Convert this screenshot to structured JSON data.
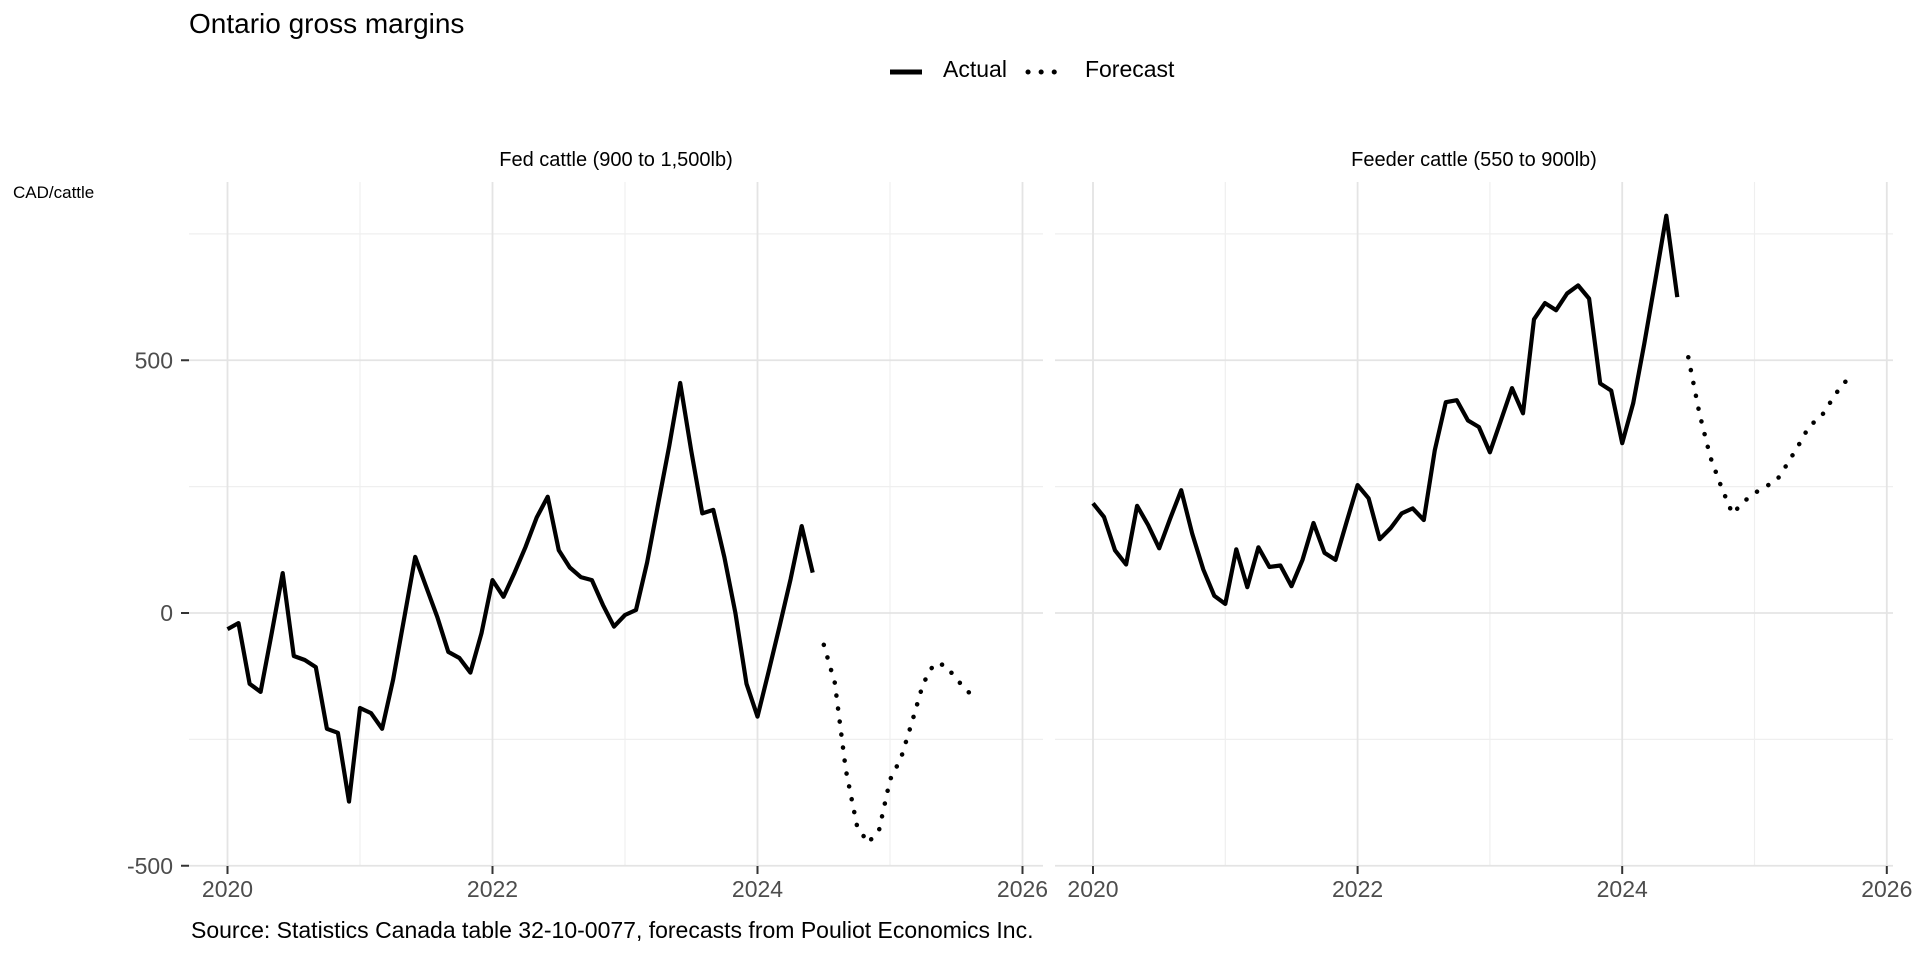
{
  "title": "Ontario gross margins",
  "axis_unit_label": "CAD/cattle",
  "source_note": "Source: Statistics Canada table 32-10-0077, forecasts from Pouliot Economics Inc.",
  "legend": [
    {
      "label": "Actual",
      "style": "solid"
    },
    {
      "label": "Forecast",
      "style": "dotted"
    }
  ],
  "colors": {
    "line": "#000000",
    "tick_label": "#4d4d4d",
    "grid_major": "#e4e4e4",
    "grid_minor": "#efefef",
    "tick_mark": "#333333",
    "background": "#ffffff"
  },
  "chart_data": {
    "type": "line",
    "title": "Ontario gross margins",
    "ylabel": "CAD/cattle",
    "x_start_month": "2020-01",
    "x_major_ticks": [
      "2020",
      "2022",
      "2024",
      "2026"
    ],
    "x_minor_years": [
      2021,
      2023,
      2025
    ],
    "y_tick_labels": [
      "500",
      "0",
      "-500"
    ],
    "y_major_values": [
      500,
      0,
      -500
    ],
    "y_minor_values": [
      750,
      250,
      -250
    ],
    "ylim": [
      -517,
      852
    ],
    "grid": true,
    "legend_position": "top-center",
    "panels": [
      {
        "title": "Fed cattle (900 to 1,500lb)",
        "series": [
          {
            "name": "Actual",
            "style": "solid",
            "start_month": 0,
            "values": [
              -32,
              -20,
              -140,
              -156,
              -40,
              79,
              -85,
              -93,
              -107,
              -229,
              -237,
              -373,
              -188,
              -198,
              -229,
              -132,
              -10,
              111,
              51,
              -8,
              -77,
              -89,
              -118,
              -40,
              65,
              32,
              80,
              131,
              189,
              230,
              124,
              90,
              71,
              65,
              16,
              -27,
              -4,
              6,
              100,
              215,
              330,
              455,
              320,
              197,
              204,
              110,
              0,
              -140,
              -205,
              -117,
              -26,
              67,
              172,
              80
            ]
          },
          {
            "name": "Forecast",
            "style": "dotted",
            "start_month": 54,
            "values": [
              -63,
              -138,
              -310,
              -420,
              -455,
              -430,
              -330,
              -287,
              -215,
              -140,
              -100,
              -103,
              -130,
              -155,
              -168
            ]
          }
        ]
      },
      {
        "title": "Feeder cattle (550 to 900lb)",
        "series": [
          {
            "name": "Actual",
            "style": "solid",
            "start_month": 0,
            "values": [
              217,
              190,
              124,
              96,
              212,
              174,
              128,
              187,
              243,
              157,
              86,
              34,
              18,
              126,
              51,
              130,
              91,
              94,
              53,
              105,
              178,
              119,
              105,
              180,
              253,
              227,
              146,
              168,
              197,
              207,
              184,
              322,
              417,
              421,
              381,
              368,
              318,
              381,
              445,
              395,
              581,
              613,
              599,
              632,
              648,
              622,
              454,
              440,
              336,
              415,
              533,
              658,
              786,
              625
            ]
          },
          {
            "name": "Forecast",
            "style": "dotted",
            "start_month": 54,
            "values": [
              506,
              395,
              308,
              249,
              196,
              220,
              237,
              250,
              262,
              296,
              332,
              371,
              387,
              421,
              454,
              468
            ]
          }
        ]
      }
    ]
  }
}
